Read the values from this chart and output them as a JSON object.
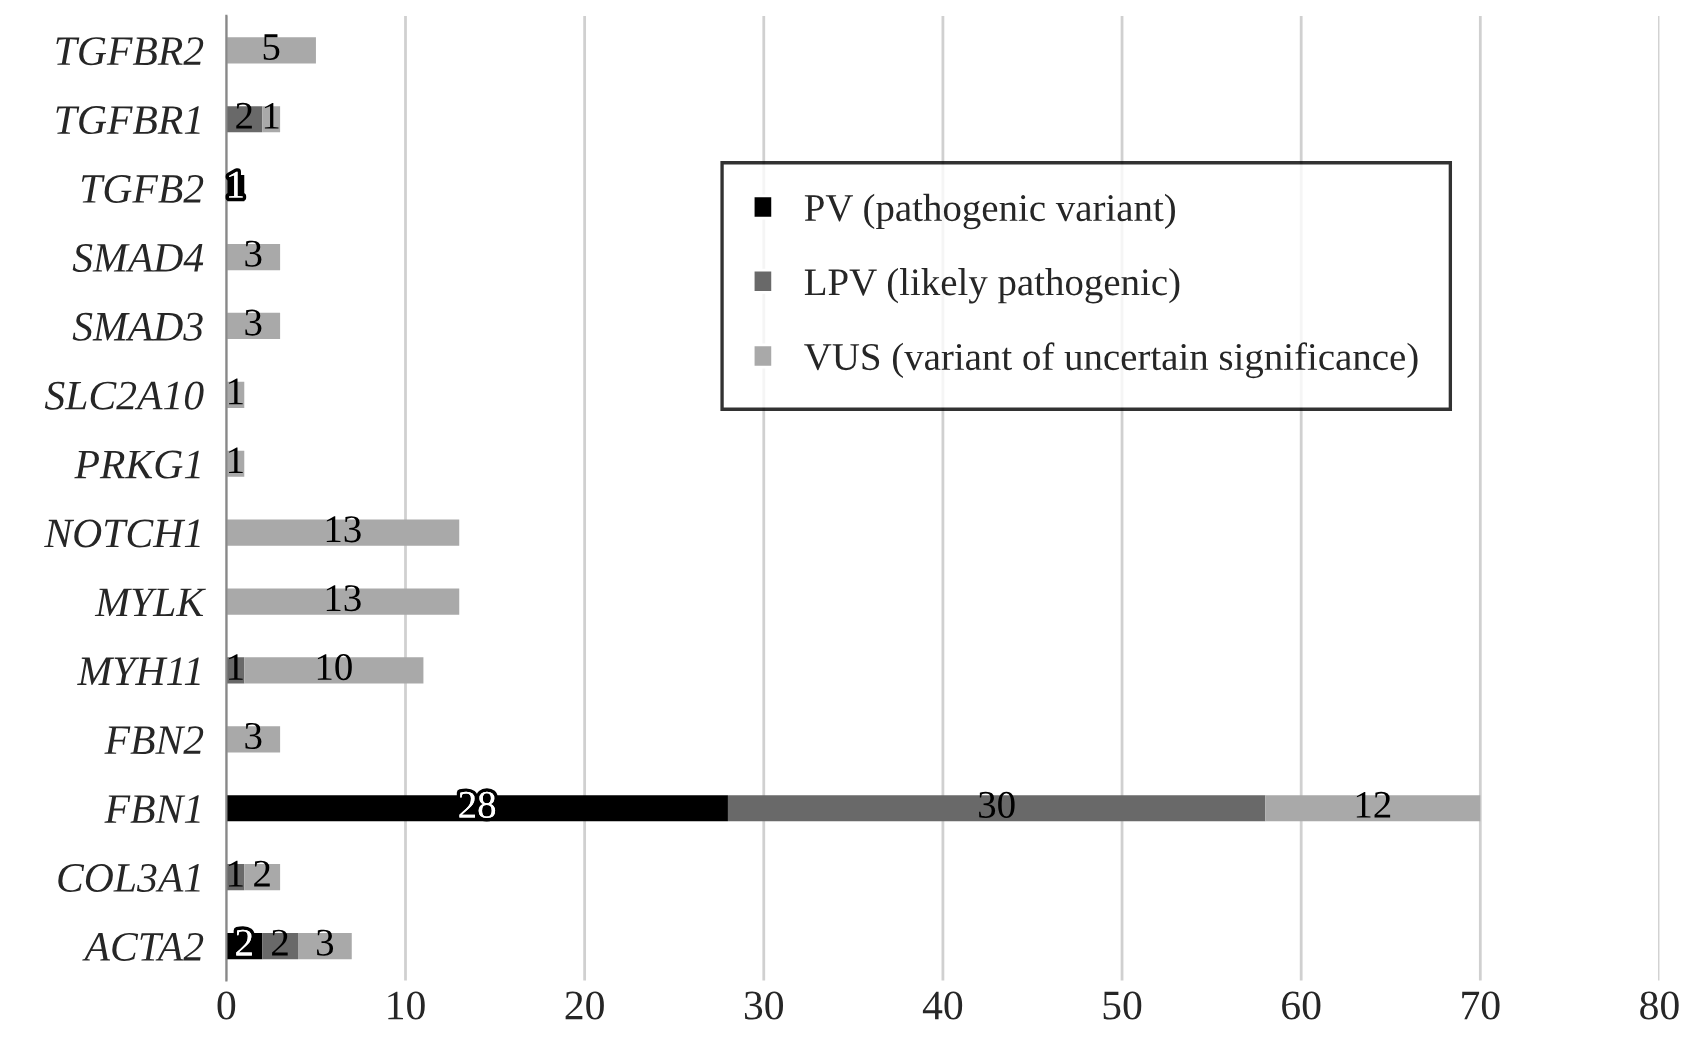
{
  "chart_data": {
    "type": "bar",
    "orientation": "horizontal",
    "stacked": true,
    "data_labels": true,
    "grid": "x",
    "legend": "center",
    "categories": [
      "TGFBR2",
      "TGFBR1",
      "TGFB2",
      "SMAD4",
      "SMAD3",
      "SLC2A10",
      "PRKG1",
      "NOTCH1",
      "MYLK",
      "MYH11",
      "FBN2",
      "FBN1",
      "COL3A1",
      "ACTA2"
    ],
    "series": [
      {
        "name": "PV (pathogenic variant)",
        "color": "#000000",
        "values": [
          null,
          null,
          1,
          null,
          null,
          null,
          null,
          null,
          null,
          null,
          null,
          28,
          null,
          2
        ]
      },
      {
        "name": "LPV (likely pathogenic)",
        "color": "#696969",
        "values": [
          null,
          2,
          null,
          null,
          null,
          null,
          null,
          null,
          null,
          1,
          null,
          30,
          1,
          2
        ]
      },
      {
        "name": "VUS (variant of uncertain significance)",
        "color": "#a9a9a9",
        "values": [
          5,
          1,
          null,
          3,
          3,
          1,
          1,
          13,
          13,
          10,
          3,
          12,
          2,
          3
        ]
      }
    ],
    "xlim": [
      0,
      80
    ],
    "xticks": [
      0,
      10,
      20,
      30,
      40,
      50,
      60,
      70,
      80
    ]
  }
}
